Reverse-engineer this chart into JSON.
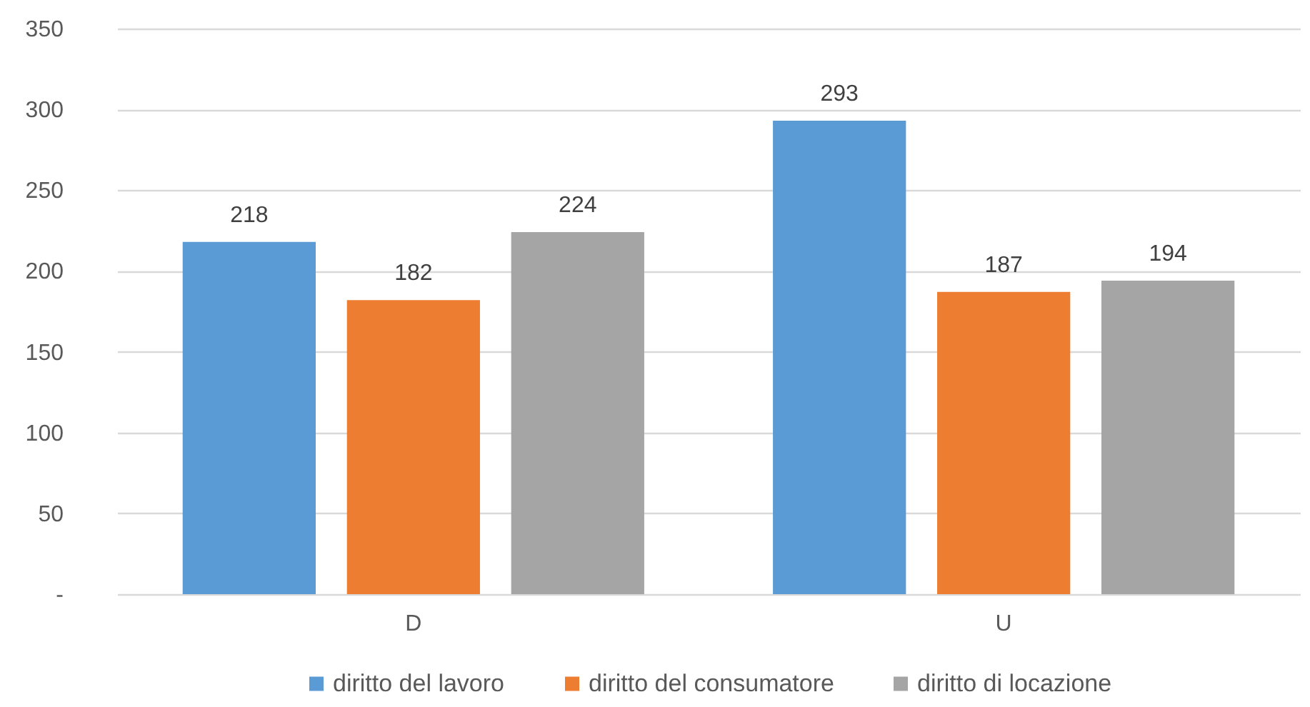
{
  "chart_data": {
    "type": "bar",
    "categories": [
      "D",
      "U"
    ],
    "series": [
      {
        "name": "diritto del lavoro",
        "color": "#5b9bd5",
        "values": [
          218,
          293
        ]
      },
      {
        "name": "diritto del consumatore",
        "color": "#ed7d31",
        "values": [
          182,
          187
        ]
      },
      {
        "name": "diritto di locazione",
        "color": "#a5a5a5",
        "values": [
          224,
          194
        ]
      }
    ],
    "ylim": [
      0,
      350
    ],
    "yticks": [
      {
        "value": 0,
        "label": "-"
      },
      50,
      100,
      150,
      200,
      250,
      300,
      350
    ],
    "grid": "y",
    "legend": "bottom",
    "data_labels": true
  }
}
